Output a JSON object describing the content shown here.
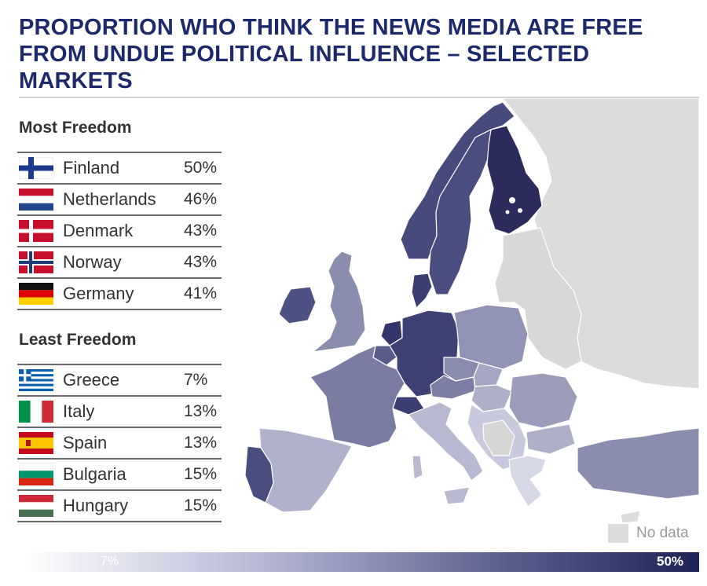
{
  "title_lines": [
    "PROPORTION WHO THINK THE NEWS MEDIA ARE FREE",
    "FROM UNDUE POLITICAL INFLUENCE – SELECTED MARKETS"
  ],
  "most_freedom": {
    "heading": "Most Freedom",
    "rows": [
      {
        "country": "Finland",
        "value": "50%"
      },
      {
        "country": "Netherlands",
        "value": "46%"
      },
      {
        "country": "Denmark",
        "value": "43%"
      },
      {
        "country": "Norway",
        "value": "43%"
      },
      {
        "country": "Germany",
        "value": "41%"
      }
    ]
  },
  "least_freedom": {
    "heading": "Least Freedom",
    "rows": [
      {
        "country": "Greece",
        "value": "7%"
      },
      {
        "country": "Italy",
        "value": "13%"
      },
      {
        "country": "Spain",
        "value": "13%"
      },
      {
        "country": "Bulgaria",
        "value": "15%"
      },
      {
        "country": "Hungary",
        "value": "15%"
      }
    ]
  },
  "legend": {
    "no_data_label": "No data",
    "scale_min": "7%",
    "scale_max": "50%",
    "no_data_color": "#dcdcdc",
    "scale_low_color": "#ffffff",
    "scale_high_color": "#1d2456"
  },
  "colors": {
    "title": "#1c2a6b",
    "finland": "#2b2c5c",
    "netherlands": "#33366a",
    "denmark": "#3b3e70",
    "norway": "#464a7c",
    "germany": "#3e4174",
    "greece": "#d7d8e6",
    "italy": "#b8b9d0",
    "spain": "#b0b1ca",
    "bulgaria": "#aeb0c8",
    "hungary": "#aeb0c8"
  }
}
